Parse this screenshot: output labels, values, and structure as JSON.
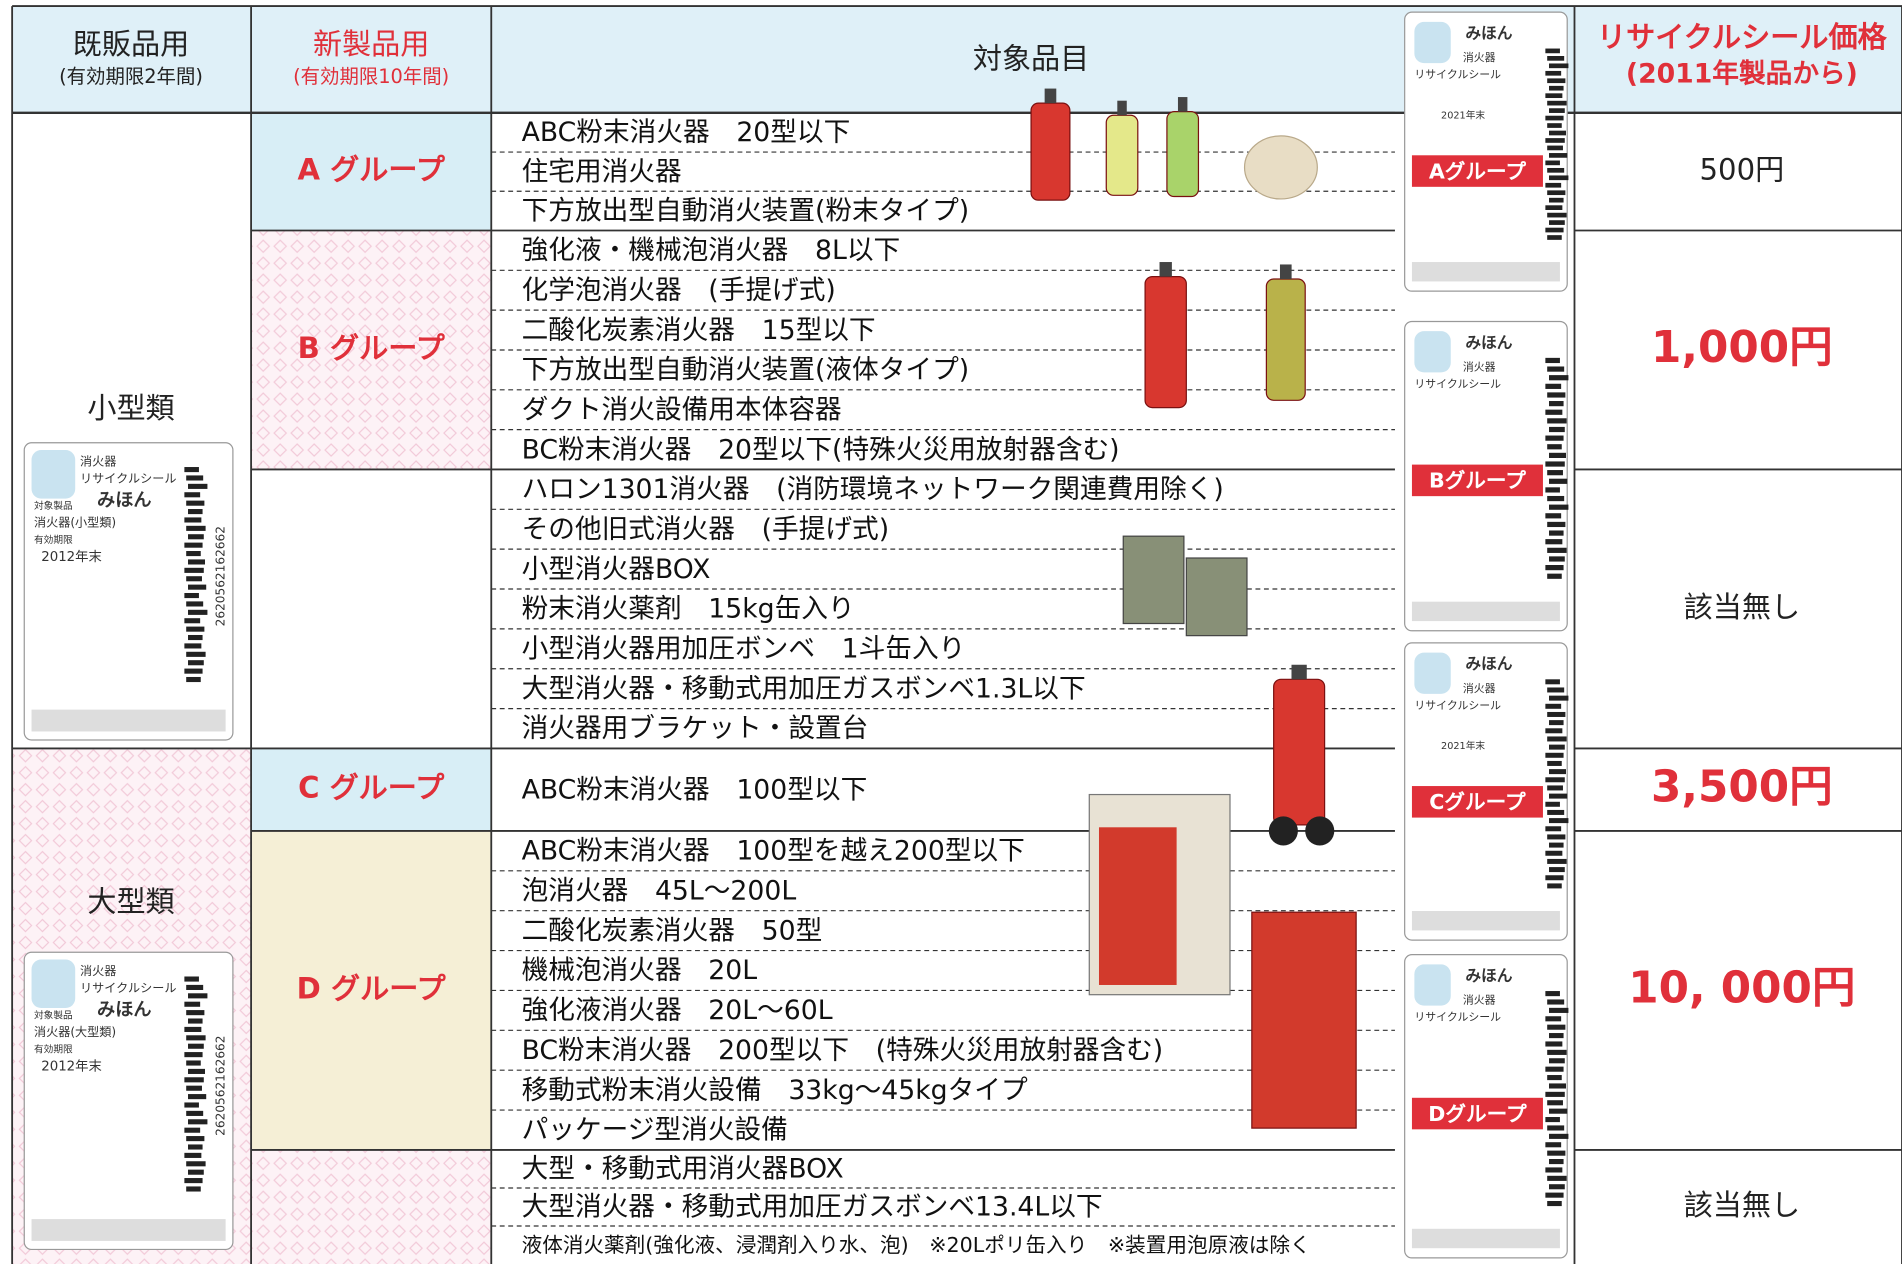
{
  "header": {
    "existing": "既販品用",
    "existing_note": "(有効期限2年間)",
    "new": "新製品用",
    "new_note": "(有効期限10年間)",
    "items": "対象品目",
    "price": "リサイクルシール価格",
    "price_note": "(2011年製品から)"
  },
  "categories": [
    {
      "label": "小型類",
      "sticker": {
        "brand": "消火器",
        "title": "リサイクルシール",
        "sample": "みほん",
        "target": "対象製品",
        "product": "消火器(小型類)",
        "expiry_label": "有効期限",
        "expiry": "2012年末",
        "code": "2620562162662"
      }
    },
    {
      "label": "大型類",
      "sticker": {
        "brand": "消火器",
        "title": "リサイクルシール",
        "sample": "みほん",
        "target": "対象製品",
        "product": "消火器(大型類)",
        "expiry_label": "有効期限",
        "expiry": "2012年末",
        "code": "2620562162662"
      }
    }
  ],
  "groups": [
    {
      "name": "A グループ",
      "price": "500円",
      "items": [
        "ABC粉末消火器　20型以下",
        "住宅用消火器",
        "下方放出型自動消火装置(粉末タイプ)"
      ]
    },
    {
      "name": "B グループ",
      "price": "1,000円",
      "items": [
        "強化液・機械泡消火器　8L以下",
        "化学泡消火器　(手提げ式)",
        "二酸化炭素消火器　15型以下",
        "下方放出型自動消火装置(液体タイプ)",
        "ダクト消火設備用本体容器",
        "BC粉末消火器　20型以下(特殊火災用放射器含む)"
      ]
    },
    {
      "price": "該当無し",
      "items": [
        "ハロン1301消火器　(消防環境ネットワーク関連費用除く)",
        "その他旧式消火器　(手提げ式)",
        "小型消火器BOX",
        "粉末消火薬剤　15kg缶入り",
        "小型消火器用加圧ボンベ　1斗缶入り",
        "大型消火器・移動式用加圧ガスボンベ1.3L以下",
        "消火器用ブラケット・設置台"
      ]
    },
    {
      "name": "C グループ",
      "price": "3,500円",
      "items": [
        "ABC粉末消火器　100型以下"
      ]
    },
    {
      "name": "D グループ",
      "price": "10, 000円",
      "items": [
        "ABC粉末消火器　100型を越え200型以下",
        "泡消火器　45L～200L",
        "二酸化炭素消火器　50型",
        "機械泡消火器　20L",
        "強化液消火器　20L～60L",
        "BC粉末消火器　200型以下　(特殊火災用放射器含む)",
        "移動式粉末消火設備　33kg～45kgタイプ",
        "パッケージ型消火設備"
      ]
    },
    {
      "price": "該当無し",
      "items": [
        "大型・移動式用消火器BOX",
        "大型消火器・移動式用加圧ガスボンベ13.4L以下",
        "液体消火薬剤(強化液、浸潤剤入り水、泡)　※20Lポリ缶入り　※装置用泡原液は除く"
      ]
    }
  ],
  "stickers": [
    {
      "sample": "みほん",
      "brand": "消火器",
      "title": "リサイクルシール",
      "group": "Aグループ",
      "expiry": "2021年末"
    },
    {
      "sample": "みほん",
      "brand": "消火器",
      "title": "リサイクルシール",
      "group": "Bグループ"
    },
    {
      "sample": "みほん",
      "brand": "消火器",
      "title": "リサイクルシール",
      "group": "Cグループ",
      "expiry": "2021年末"
    },
    {
      "sample": "みほん",
      "brand": "消火器",
      "title": "リサイクルシール",
      "group": "Dグループ"
    }
  ]
}
